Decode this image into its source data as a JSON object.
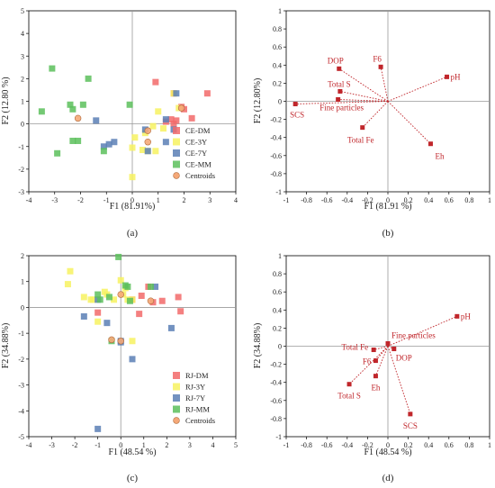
{
  "colors": {
    "DM": "#f26a6a",
    "3Y": "#f7f260",
    "7Y": "#5b7fb5",
    "MM": "#5cbf5c",
    "centroid": "#f5a878",
    "vector": "#c0262b",
    "axis": "#000000",
    "zero": "#999999"
  },
  "chart_data": [
    {
      "id": "a",
      "type": "scatter",
      "panel_label": "(a)",
      "xlabel": "F1 (81.91%)",
      "ylabel": "F2 (12.80 %)",
      "xlim": [
        -4,
        4
      ],
      "ylim": [
        -3,
        5
      ],
      "xticks": [
        -4,
        -3,
        -2,
        -1,
        0,
        1,
        2,
        3,
        4
      ],
      "yticks": [
        -3,
        -2,
        -1,
        0,
        1,
        2,
        3,
        4,
        5
      ],
      "legend_position": "bottom-right",
      "series": [
        {
          "name": "CE-DM",
          "key": "DM",
          "x": [
            0.9,
            1.6,
            2.0,
            2.3,
            1.5,
            1.7,
            2.9,
            1.9,
            1.3,
            1.6
          ],
          "y": [
            1.85,
            1.35,
            0.65,
            0.25,
            0.2,
            0.15,
            1.35,
            0.75,
            0.1,
            0.0
          ]
        },
        {
          "name": "CE-3Y",
          "key": "3Y",
          "x": [
            1.0,
            0.8,
            1.2,
            0.5,
            0.0,
            0.1,
            0.4,
            0.6,
            0.9,
            1.8,
            0.0,
            1.6
          ],
          "y": [
            0.55,
            -0.1,
            -0.2,
            -0.4,
            -2.35,
            -0.6,
            -1.15,
            -1.2,
            -1.2,
            0.7,
            -1.05,
            1.35
          ]
        },
        {
          "name": "CE-7Y",
          "key": "7Y",
          "x": [
            -0.7,
            -0.9,
            -1.1,
            -1.4,
            0.5,
            1.3,
            1.6,
            1.7,
            1.3,
            0.6
          ],
          "y": [
            -0.8,
            -0.9,
            -1.0,
            0.15,
            -0.25,
            0.2,
            -0.25,
            1.35,
            -0.8,
            -1.2
          ]
        },
        {
          "name": "CE-MM",
          "key": "MM",
          "x": [
            -3.1,
            -1.7,
            -3.5,
            -2.4,
            -2.3,
            -1.9,
            -2.1,
            -2.9,
            -2.3,
            -0.1,
            -1.1
          ],
          "y": [
            2.45,
            2.0,
            0.55,
            0.85,
            0.65,
            0.85,
            -0.75,
            -1.3,
            -0.75,
            0.85,
            -1.2
          ]
        },
        {
          "name": "Centroids",
          "key": "centroid",
          "x": [
            1.9,
            0.6,
            0.6,
            -2.1
          ],
          "y": [
            0.7,
            -0.3,
            -0.8,
            0.25
          ]
        }
      ]
    },
    {
      "id": "b",
      "type": "biplot",
      "panel_label": "(b)",
      "xlabel": "F1 (81.91 %)",
      "ylabel": "F2 (12.80%)",
      "xlim": [
        -1.0,
        1.0
      ],
      "ylim": [
        -1.0,
        1.0
      ],
      "xticks": [
        -1.0,
        -0.8,
        -0.6,
        -0.4,
        -0.2,
        0,
        0.2,
        0.4,
        0.6,
        0.8,
        1.0
      ],
      "yticks": [
        -1.0,
        -0.8,
        -0.6,
        -0.4,
        -0.2,
        0,
        0.2,
        0.4,
        0.6,
        0.8,
        1.0
      ],
      "vectors": [
        {
          "label": "pH",
          "x": 0.58,
          "y": 0.27
        },
        {
          "label": "F6",
          "x": -0.07,
          "y": 0.38
        },
        {
          "label": "DOP",
          "x": -0.48,
          "y": 0.36
        },
        {
          "label": "Total S",
          "x": -0.47,
          "y": 0.11
        },
        {
          "label": "Fine particles",
          "x": -0.49,
          "y": 0.02
        },
        {
          "label": "SCS",
          "x": -0.91,
          "y": -0.03
        },
        {
          "label": "Total Fe",
          "x": -0.25,
          "y": -0.29
        },
        {
          "label": "Eh",
          "x": 0.42,
          "y": -0.47
        }
      ]
    },
    {
      "id": "c",
      "type": "scatter",
      "panel_label": "(c)",
      "xlabel": "F1 (48.54 %)",
      "ylabel": "F2 (34.88%)",
      "xlim": [
        -4,
        5
      ],
      "ylim": [
        -5,
        2
      ],
      "xticks": [
        -4,
        -3,
        -2,
        -1,
        0,
        1,
        2,
        3,
        4,
        5
      ],
      "yticks": [
        -5,
        -4,
        -3,
        -2,
        -1,
        0,
        1,
        2
      ],
      "legend_position": "bottom-right",
      "series": [
        {
          "name": "RJ-DM",
          "key": "DM",
          "x": [
            1.2,
            1.8,
            2.5,
            0.9,
            2.6,
            1.4,
            0.8,
            0.5,
            -1.0
          ],
          "y": [
            0.8,
            0.25,
            0.4,
            0.45,
            -0.15,
            0.2,
            -0.25,
            0.3,
            -0.2
          ]
        },
        {
          "name": "RJ-3Y",
          "key": "3Y",
          "x": [
            -2.2,
            -2.3,
            -1.6,
            -1.3,
            -0.6,
            -0.3,
            0.0,
            0.2,
            0.3,
            0.5,
            0.5,
            0.1,
            -1.0,
            -1.2,
            -0.7
          ],
          "y": [
            1.4,
            0.9,
            0.4,
            0.3,
            0.5,
            0.3,
            1.05,
            0.75,
            0.3,
            -1.3,
            0.3,
            0.5,
            -0.55,
            0.3,
            0.6
          ]
        },
        {
          "name": "RJ-7Y",
          "key": "7Y",
          "x": [
            -1.0,
            -0.6,
            -1.6,
            0.0,
            0.5,
            2.2,
            1.5,
            0.0,
            -1.0
          ],
          "y": [
            -4.7,
            -0.6,
            -0.35,
            -1.35,
            -2.0,
            -0.8,
            0.8,
            -1.3,
            0.3
          ]
        },
        {
          "name": "RJ-MM",
          "key": "MM",
          "x": [
            -0.1,
            0.2,
            -0.5,
            -0.9,
            -1.0,
            0.3,
            1.3,
            -0.4,
            0.4
          ],
          "y": [
            1.95,
            0.85,
            0.4,
            0.3,
            0.5,
            0.8,
            0.8,
            -1.3,
            0.25
          ]
        },
        {
          "name": "Centroids",
          "key": "centroid",
          "x": [
            1.3,
            0.0,
            -0.4,
            0.0
          ],
          "y": [
            0.25,
            0.5,
            -1.25,
            -1.3
          ]
        }
      ]
    },
    {
      "id": "d",
      "type": "biplot",
      "panel_label": "(d)",
      "xlabel": "F1 (48.54 %)",
      "ylabel": "F2 (34.88%)",
      "xlim": [
        -1.0,
        1.0
      ],
      "ylim": [
        -1.0,
        1.0
      ],
      "xticks": [
        -1.0,
        -0.8,
        -0.6,
        -0.4,
        -0.2,
        0,
        0.2,
        0.4,
        0.6,
        0.8,
        1.0
      ],
      "yticks": [
        -1.0,
        -0.8,
        -0.6,
        -0.4,
        -0.2,
        0,
        0.2,
        0.4,
        0.6,
        0.8,
        1.0
      ],
      "vectors": [
        {
          "label": "pH",
          "x": 0.68,
          "y": 0.33
        },
        {
          "label": "Fine particles",
          "x": 0.0,
          "y": 0.03
        },
        {
          "label": "DOP",
          "x": 0.06,
          "y": -0.03
        },
        {
          "label": "Total Fe",
          "x": -0.14,
          "y": -0.04
        },
        {
          "label": "F6",
          "x": -0.12,
          "y": -0.16
        },
        {
          "label": "Eh",
          "x": -0.12,
          "y": -0.33
        },
        {
          "label": "Total S",
          "x": -0.38,
          "y": -0.42
        },
        {
          "label": "SCS",
          "x": 0.22,
          "y": -0.75
        }
      ]
    }
  ]
}
